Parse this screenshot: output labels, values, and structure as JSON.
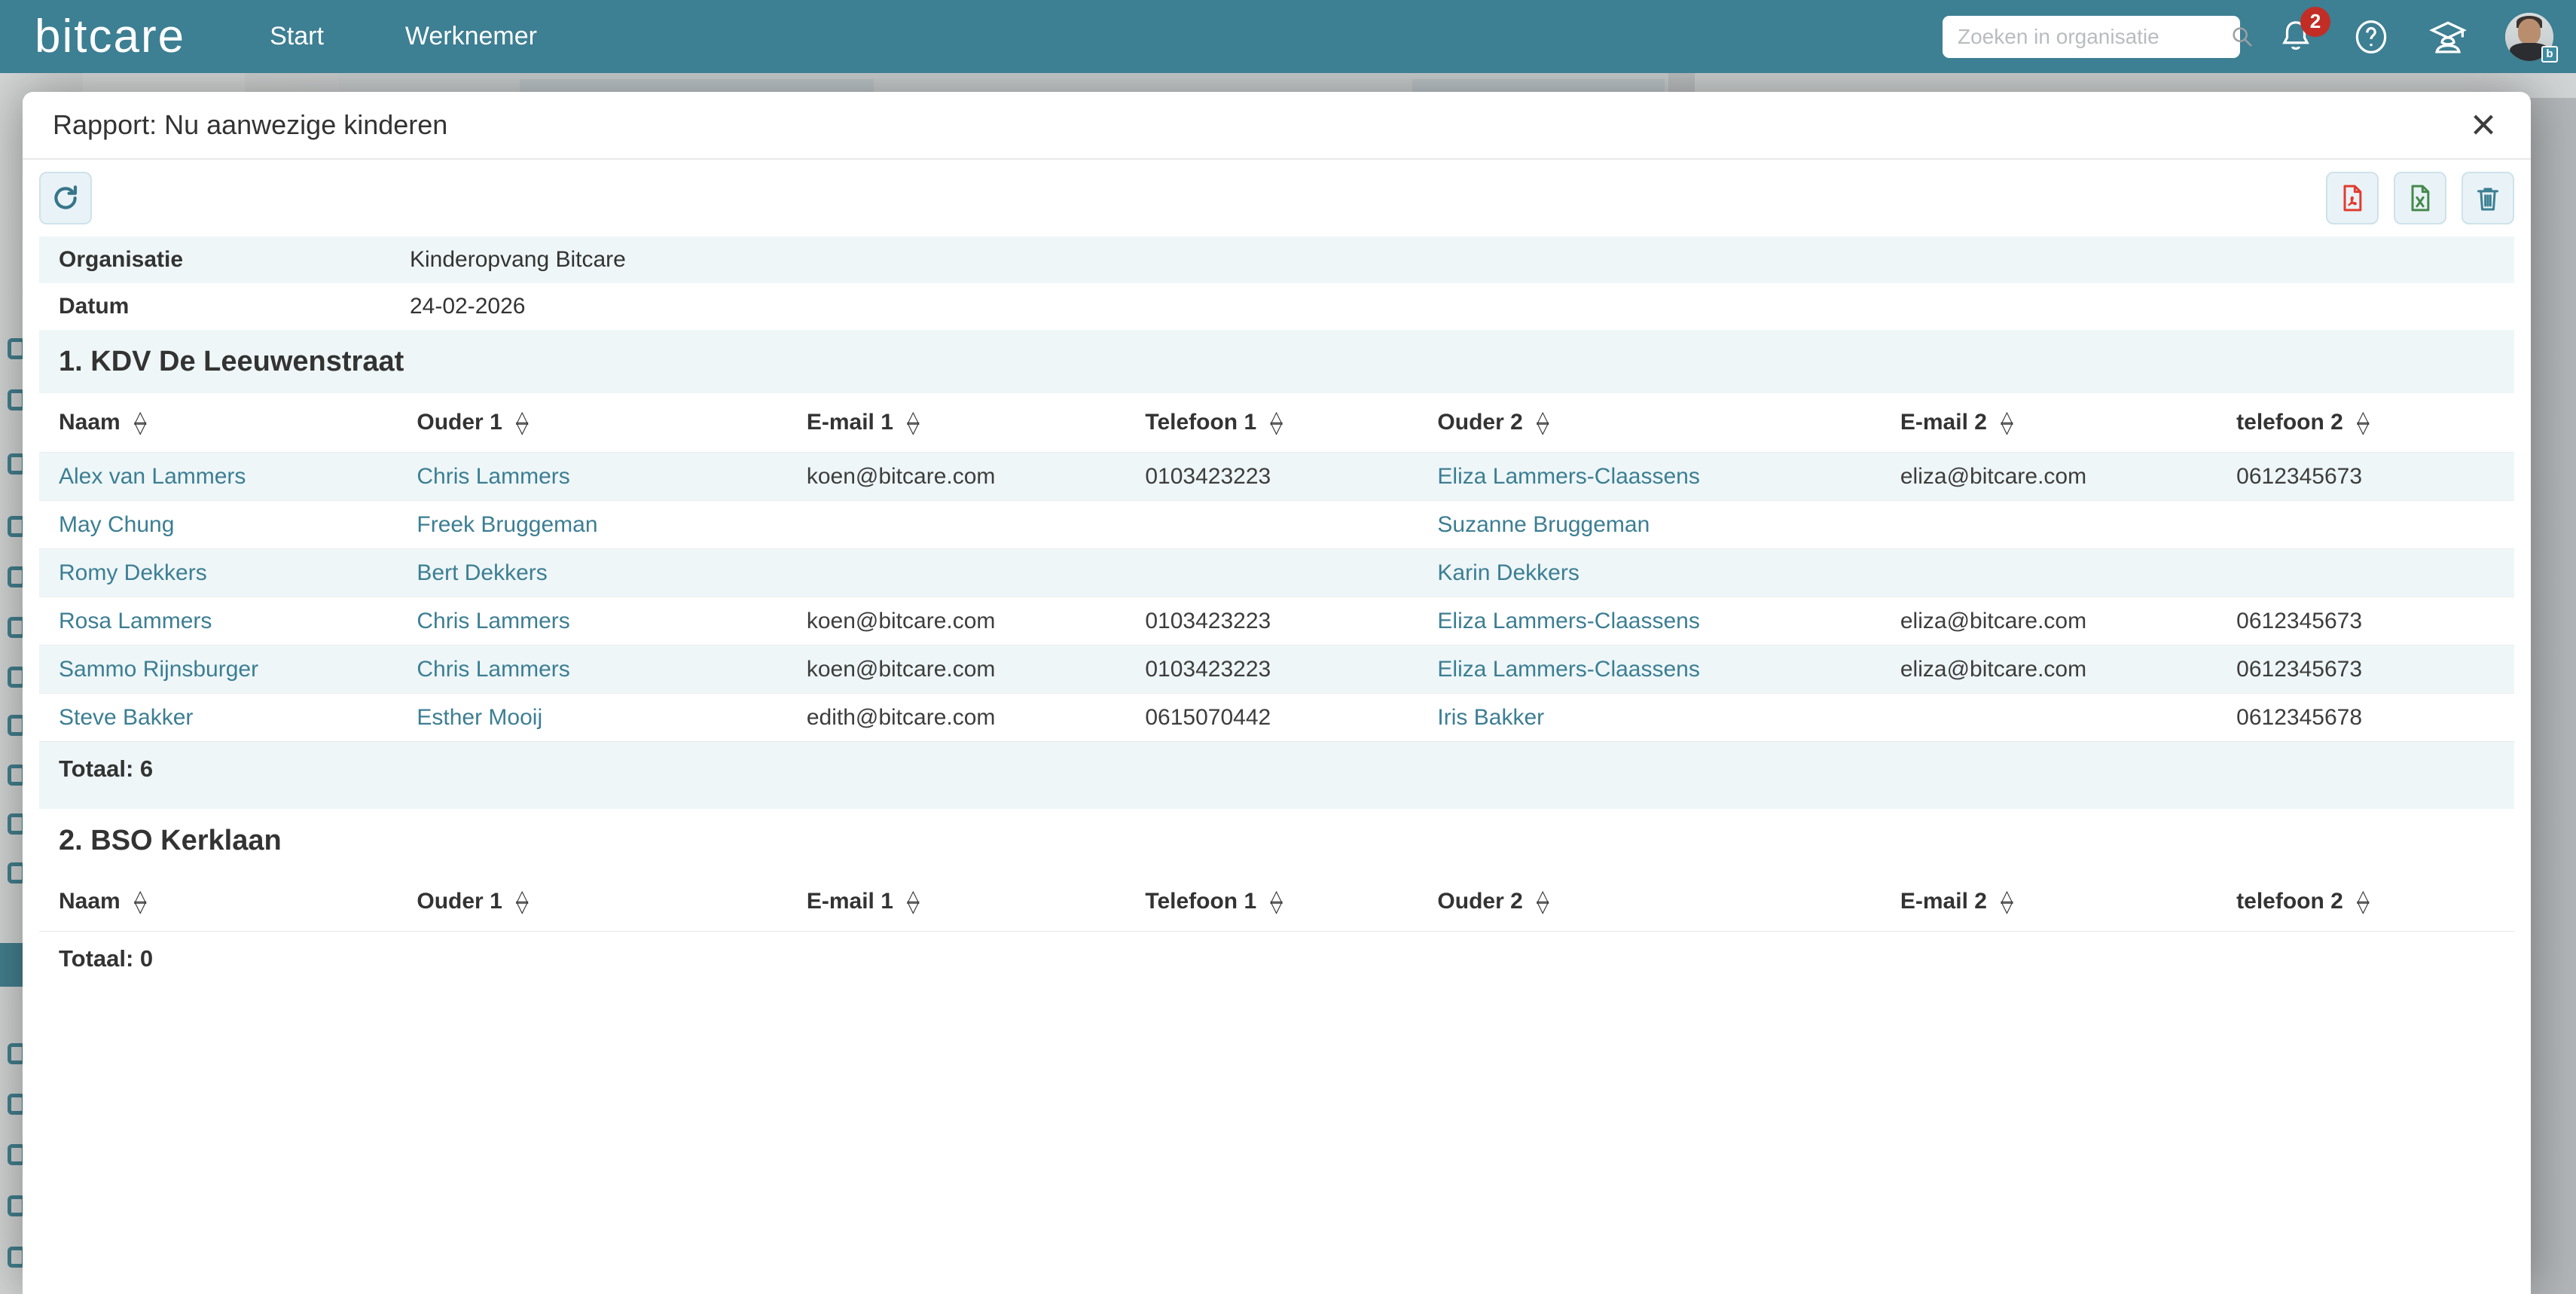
{
  "topbar": {
    "logo": "bitcare",
    "nav": [
      {
        "label": "Start"
      },
      {
        "label": "Werknemer"
      }
    ],
    "search": {
      "placeholder": "Zoeken in organisatie"
    },
    "notifications": {
      "count": "2"
    },
    "avatar_badge": "b"
  },
  "icons": {
    "close": "×",
    "sort_asc": "△",
    "sort_desc": "▽"
  },
  "modal": {
    "title": "Rapport: Nu aanwezige kinderen"
  },
  "info_rows": [
    {
      "label": "Organisatie",
      "value": "Kinderopvang Bitcare"
    },
    {
      "label": "Datum",
      "value": "24-02-2026"
    }
  ],
  "table": {
    "columns": [
      "Naam",
      "Ouder 1",
      "E-mail 1",
      "Telefoon 1",
      "Ouder 2",
      "E-mail 2",
      "telefoon 2"
    ]
  },
  "sections": [
    {
      "heading": "1. KDV De Leeuwenstraat",
      "total": "Totaal: 6",
      "rows": [
        [
          "Alex van Lammers",
          "Chris Lammers",
          "koen@bitcare.com",
          "0103423223",
          "Eliza Lammers-Claassens",
          "eliza@bitcare.com",
          "0612345673"
        ],
        [
          "May Chung",
          "Freek Bruggeman",
          "",
          "",
          "Suzanne Bruggeman",
          "",
          ""
        ],
        [
          "Romy Dekkers",
          "Bert Dekkers",
          "",
          "",
          "Karin Dekkers",
          "",
          ""
        ],
        [
          "Rosa Lammers",
          "Chris Lammers",
          "koen@bitcare.com",
          "0103423223",
          "Eliza Lammers-Claassens",
          "eliza@bitcare.com",
          "0612345673"
        ],
        [
          "Sammo Rijnsburger",
          "Chris Lammers",
          "koen@bitcare.com",
          "0103423223",
          "Eliza Lammers-Claassens",
          "eliza@bitcare.com",
          "0612345673"
        ],
        [
          "Steve Bakker",
          "Esther Mooij",
          "edith@bitcare.com",
          "0615070442",
          "Iris Bakker",
          "",
          "0612345678"
        ]
      ]
    },
    {
      "heading": "2. BSO Kerklaan",
      "total": "Totaal: 0",
      "rows": []
    }
  ]
}
